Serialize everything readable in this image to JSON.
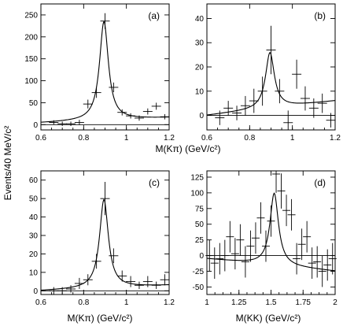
{
  "figure": {
    "ylabel": "Events/40 MeV/c²",
    "xlabel_top": "M(Kπ) (GeV/c²)",
    "xlabel_c": "M(Kπ) (GeV/c²)",
    "xlabel_d": "M(KK) (GeV/c²)"
  },
  "chart_data": [
    {
      "type": "scatter",
      "label": "(a)",
      "xlim": [
        0.6,
        1.2
      ],
      "ylim": [
        -12,
        275
      ],
      "xticks": [
        "0.6",
        "0.8",
        "1",
        "1.2"
      ],
      "xtick_values": [
        0.6,
        0.8,
        1.0,
        1.2
      ],
      "yticks": [
        "0",
        "50",
        "100",
        "150",
        "200",
        "250"
      ],
      "ytick_values": [
        0,
        50,
        100,
        150,
        200,
        250
      ],
      "points": [
        [
          0.66,
          5
        ],
        [
          0.7,
          2
        ],
        [
          0.74,
          2
        ],
        [
          0.78,
          5
        ],
        [
          0.82,
          47
        ],
        [
          0.86,
          73
        ],
        [
          0.9,
          236
        ],
        [
          0.94,
          85
        ],
        [
          0.98,
          28
        ],
        [
          1.02,
          20
        ],
        [
          1.06,
          15
        ],
        [
          1.1,
          30
        ],
        [
          1.14,
          42
        ],
        [
          1.18,
          18
        ]
      ],
      "errors": [
        5,
        5,
        5,
        6,
        10,
        12,
        18,
        11,
        7,
        6,
        6,
        7,
        8,
        6
      ],
      "curve": {
        "mass": 0.895,
        "width": 0.05,
        "peak": 225,
        "background": [
          4,
          16
        ]
      }
    },
    {
      "type": "scatter",
      "label": "(b)",
      "xlim": [
        0.6,
        1.2
      ],
      "ylim": [
        -6,
        46
      ],
      "xticks": [
        "0.6",
        "0.8",
        "1",
        "1.2"
      ],
      "xtick_values": [
        0.6,
        0.8,
        1.0,
        1.2
      ],
      "yticks": [
        "0",
        "10",
        "20",
        "30",
        "40"
      ],
      "ytick_values": [
        0,
        10,
        20,
        30,
        40
      ],
      "points": [
        [
          0.66,
          -1
        ],
        [
          0.7,
          3
        ],
        [
          0.74,
          1
        ],
        [
          0.78,
          4
        ],
        [
          0.82,
          6
        ],
        [
          0.86,
          10
        ],
        [
          0.9,
          27
        ],
        [
          0.94,
          10
        ],
        [
          0.98,
          -3
        ],
        [
          1.02,
          17
        ],
        [
          1.06,
          7
        ],
        [
          1.1,
          3
        ],
        [
          1.14,
          5
        ],
        [
          1.18,
          -2
        ]
      ],
      "errors": [
        3,
        3,
        3,
        4,
        5,
        6,
        10,
        5,
        5,
        6,
        5,
        4,
        4,
        3
      ],
      "curve": {
        "mass": 0.895,
        "width": 0.05,
        "peak": 23,
        "background": [
          0,
          6
        ]
      }
    },
    {
      "type": "scatter",
      "label": "(c)",
      "xlim": [
        0.6,
        1.2
      ],
      "ylim": [
        -2,
        65
      ],
      "xticks": [
        "0.6",
        "0.8",
        "1",
        "1.2"
      ],
      "xtick_values": [
        0.6,
        0.8,
        1.0,
        1.2
      ],
      "yticks": [
        "0",
        "10",
        "20",
        "30",
        "40",
        "50",
        "60"
      ],
      "ytick_values": [
        0,
        10,
        20,
        30,
        40,
        50,
        60
      ],
      "points": [
        [
          0.66,
          0
        ],
        [
          0.7,
          0
        ],
        [
          0.74,
          1
        ],
        [
          0.78,
          4
        ],
        [
          0.82,
          6
        ],
        [
          0.86,
          16
        ],
        [
          0.9,
          50
        ],
        [
          0.94,
          19
        ],
        [
          0.98,
          8
        ],
        [
          1.02,
          5
        ],
        [
          1.06,
          3
        ],
        [
          1.1,
          5
        ],
        [
          1.14,
          3
        ],
        [
          1.18,
          6
        ]
      ],
      "errors": [
        2,
        2,
        2,
        3,
        3,
        4,
        9,
        4,
        3,
        3,
        2,
        3,
        2,
        3
      ],
      "curve": {
        "mass": 0.895,
        "width": 0.05,
        "peak": 48,
        "background": [
          0,
          3
        ]
      }
    },
    {
      "type": "scatter",
      "label": "(d)",
      "xlim": [
        1.0,
        2.0
      ],
      "ylim": [
        -62,
        135
      ],
      "xticks": [
        "1",
        "1.25",
        "1.5",
        "1.75",
        "2"
      ],
      "xtick_values": [
        1.0,
        1.25,
        1.5,
        1.75,
        2.0
      ],
      "yticks": [
        "-50",
        "-25",
        "0",
        "25",
        "50",
        "75",
        "100",
        "125"
      ],
      "ytick_values": [
        -50,
        -25,
        0,
        25,
        50,
        75,
        100,
        125
      ],
      "points": [
        [
          1.02,
          0
        ],
        [
          1.06,
          -12
        ],
        [
          1.1,
          -5
        ],
        [
          1.14,
          0
        ],
        [
          1.18,
          30
        ],
        [
          1.22,
          3
        ],
        [
          1.26,
          25
        ],
        [
          1.3,
          -10
        ],
        [
          1.34,
          15
        ],
        [
          1.38,
          28
        ],
        [
          1.42,
          60
        ],
        [
          1.46,
          15
        ],
        [
          1.5,
          55
        ],
        [
          1.54,
          130
        ],
        [
          1.58,
          103
        ],
        [
          1.62,
          72
        ],
        [
          1.66,
          65
        ],
        [
          1.7,
          -5
        ],
        [
          1.74,
          18
        ],
        [
          1.78,
          30
        ],
        [
          1.82,
          -12
        ],
        [
          1.86,
          -10
        ],
        [
          1.9,
          -25
        ],
        [
          1.94,
          -15
        ],
        [
          1.98,
          -5
        ]
      ],
      "errors": [
        25,
        25,
        25,
        25,
        25,
        25,
        25,
        25,
        25,
        25,
        25,
        25,
        25,
        30,
        28,
        25,
        25,
        25,
        25,
        25,
        25,
        25,
        25,
        25,
        25
      ],
      "curve": {
        "mass": 1.525,
        "width": 0.08,
        "peak": 115,
        "background": [
          -5,
          -25
        ]
      }
    }
  ]
}
